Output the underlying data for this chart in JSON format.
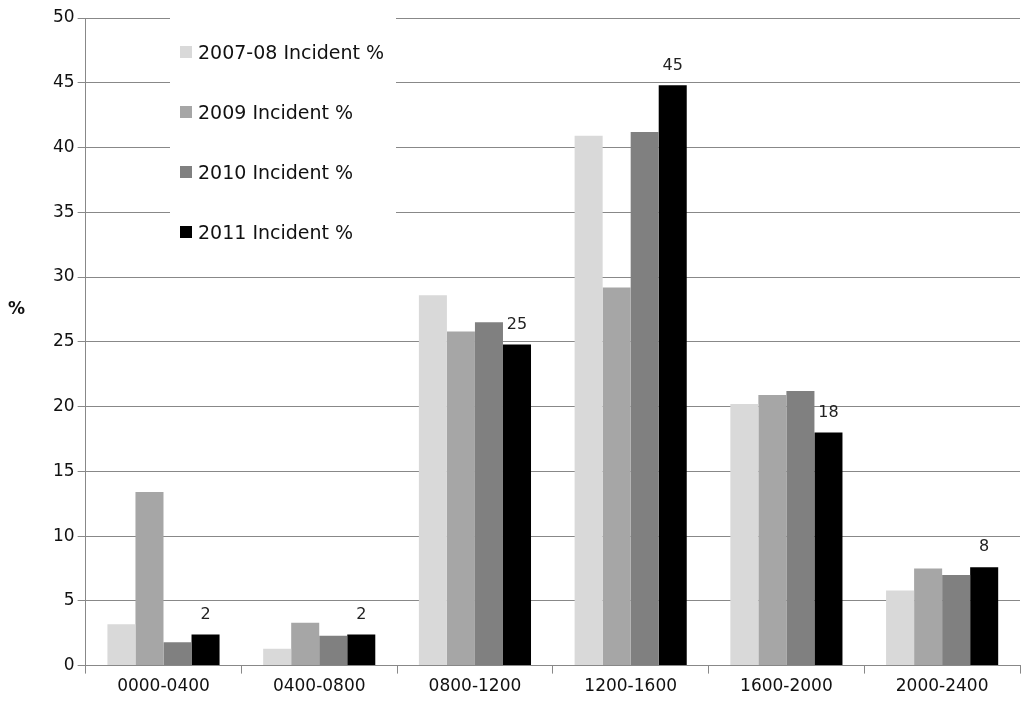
{
  "chart_data": {
    "type": "bar",
    "ylabel": "%",
    "categories": [
      "0000-0400",
      "0400-0800",
      "0800-1200",
      "1200-1600",
      "1600-2000",
      "2000-2400"
    ],
    "series": [
      {
        "name": "2007-08 Incident %",
        "color": "#d9d9d9",
        "values": [
          3.2,
          1.3,
          28.6,
          40.9,
          20.2,
          5.8
        ]
      },
      {
        "name": "2009 Incident %",
        "color": "#a6a6a6",
        "values": [
          13.4,
          3.3,
          25.8,
          29.2,
          20.9,
          7.5
        ]
      },
      {
        "name": "2010 Incident %",
        "color": "#808080",
        "values": [
          1.8,
          2.3,
          26.5,
          41.2,
          21.2,
          7.0
        ]
      },
      {
        "name": "2011 Incident %",
        "color": "#000000",
        "values": [
          2.4,
          2.4,
          24.8,
          44.8,
          18.0,
          7.6
        ],
        "value_labels": [
          "2",
          "2",
          "25",
          "45",
          "18",
          "8"
        ]
      }
    ],
    "ylim": [
      0,
      50
    ],
    "yticks": [
      0,
      5,
      10,
      15,
      20,
      25,
      30,
      35,
      40,
      45,
      50
    ],
    "grid": "y",
    "legend": "top left"
  }
}
